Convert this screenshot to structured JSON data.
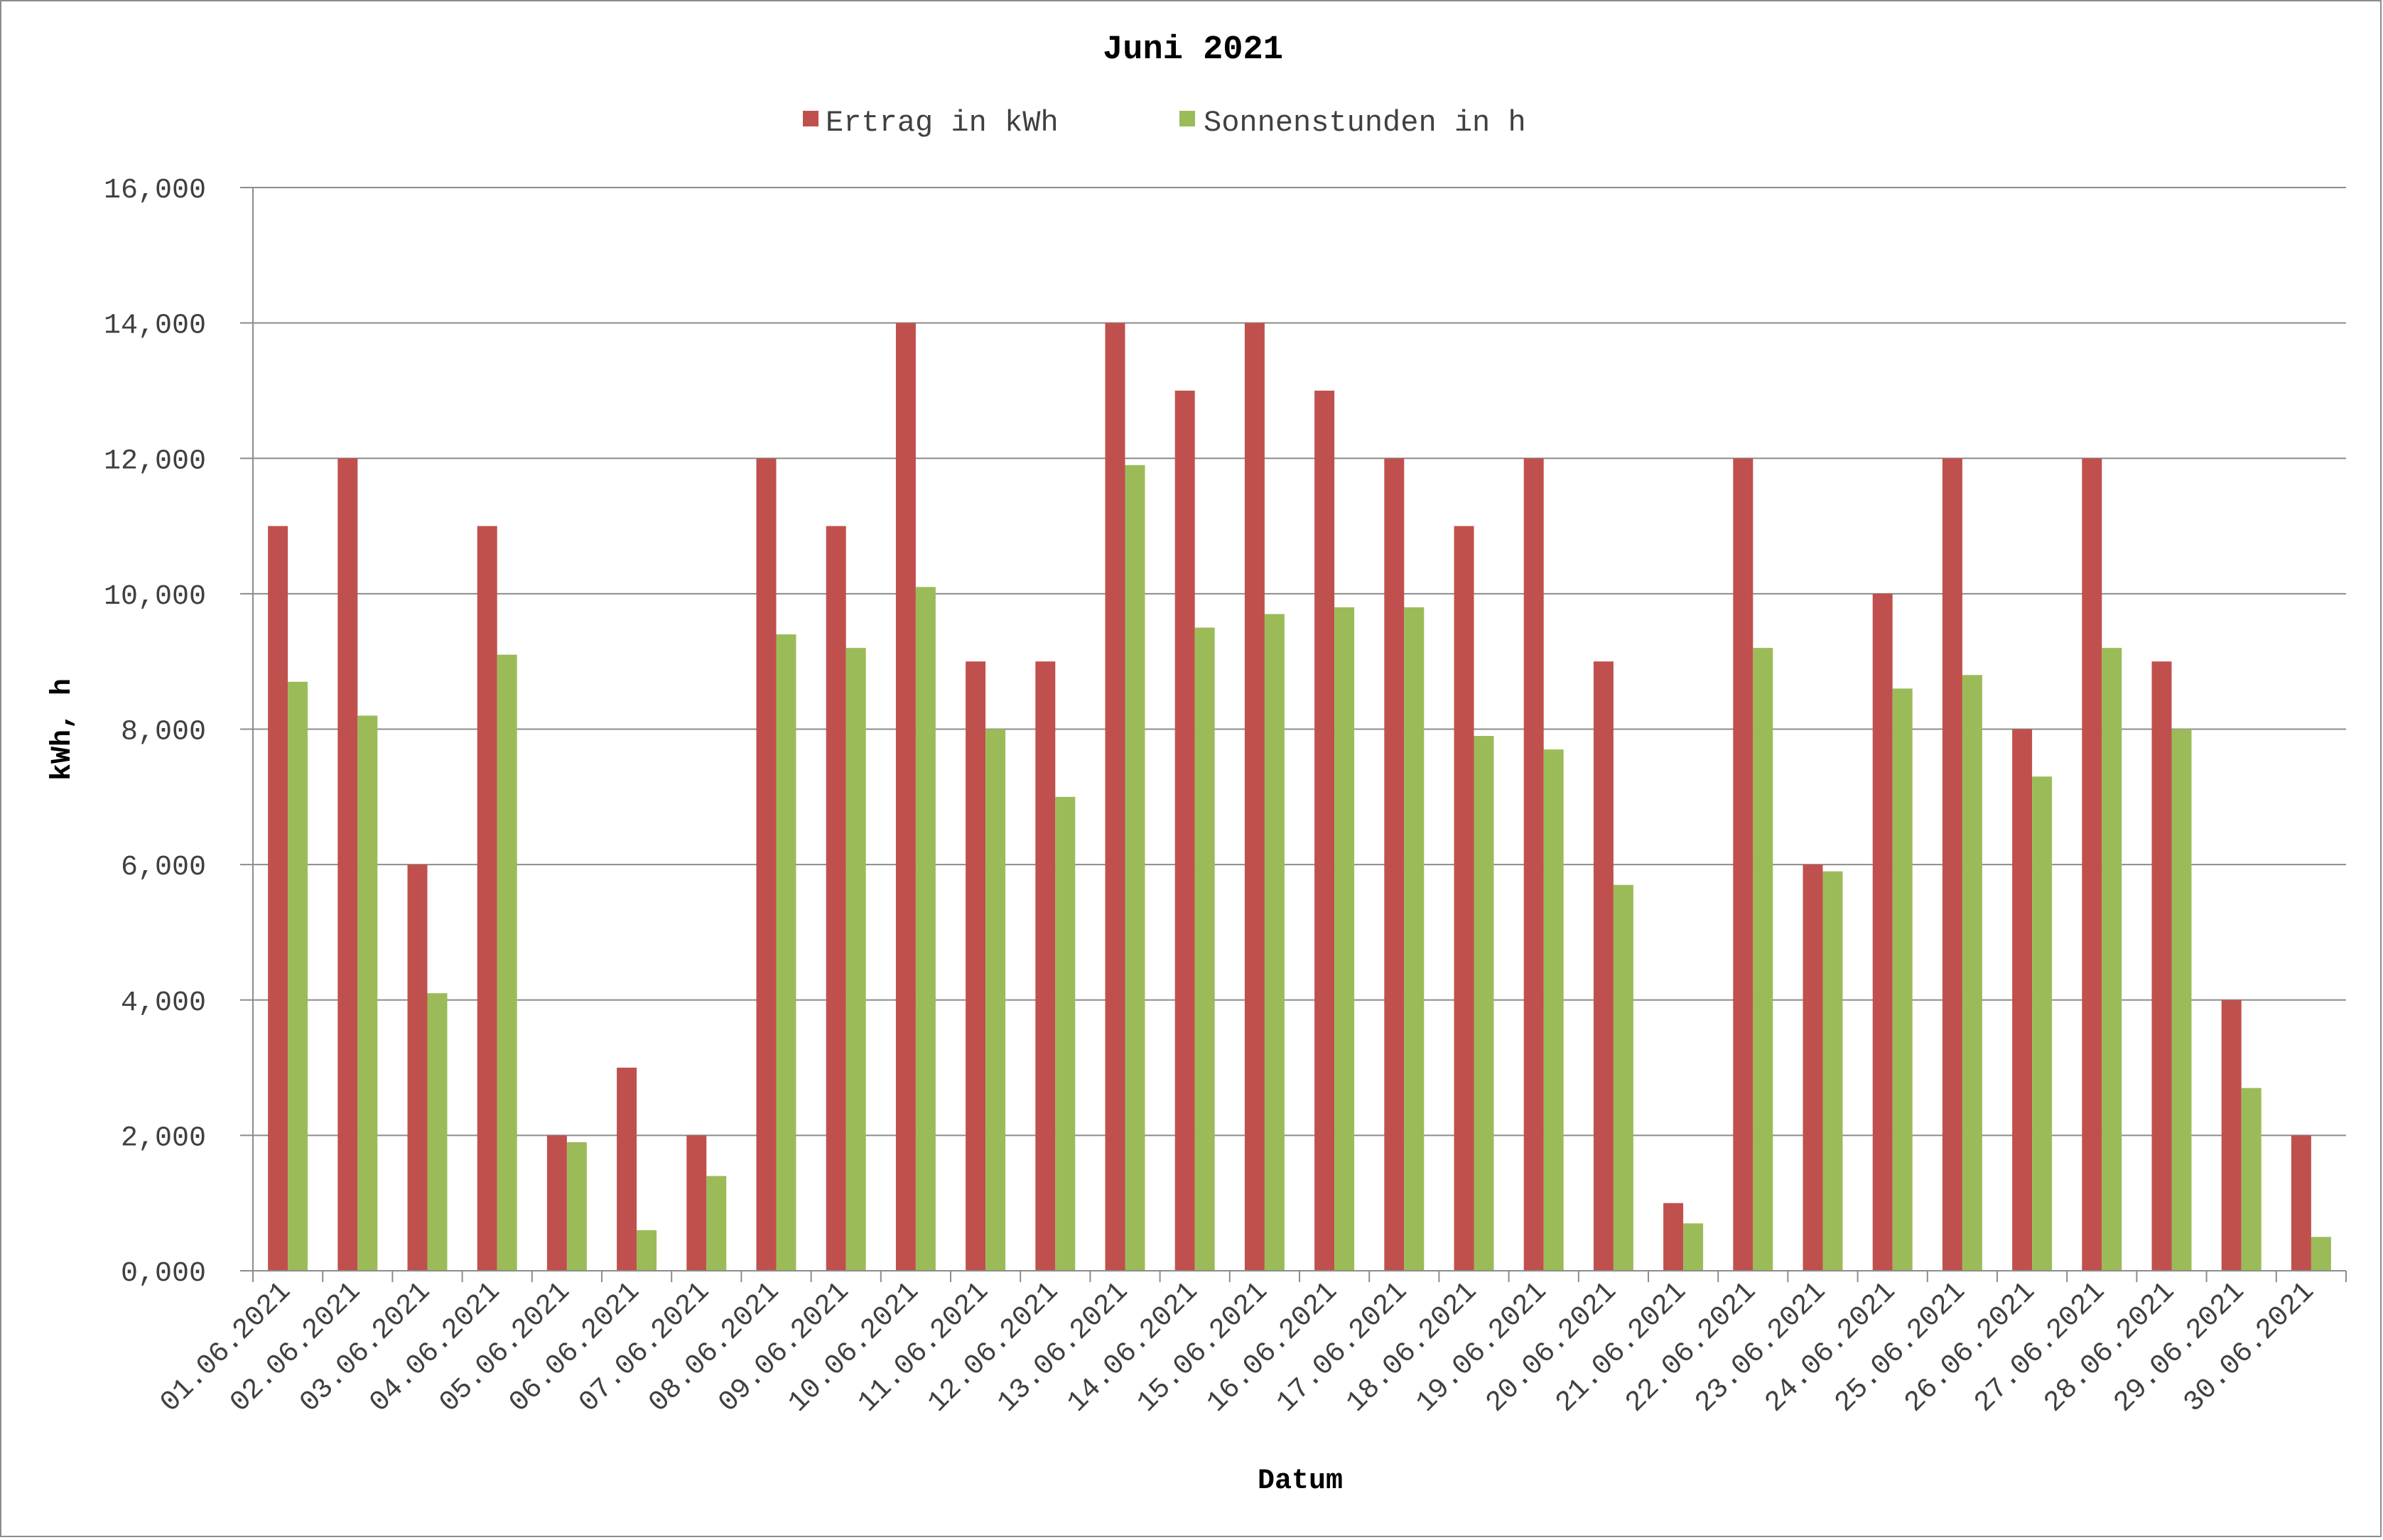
{
  "chart_data": {
    "type": "bar",
    "title": "Juni 2021",
    "xlabel": "Datum",
    "ylabel": "kWh, h",
    "ylim": [
      0,
      16
    ],
    "yticks": [
      "0,000",
      "2,000",
      "4,000",
      "6,000",
      "8,000",
      "10,000",
      "12,000",
      "14,000",
      "16,000"
    ],
    "grid": true,
    "legend_position": "top",
    "categories": [
      "01.06.2021",
      "02.06.2021",
      "03.06.2021",
      "04.06.2021",
      "05.06.2021",
      "06.06.2021",
      "07.06.2021",
      "08.06.2021",
      "09.06.2021",
      "10.06.2021",
      "11.06.2021",
      "12.06.2021",
      "13.06.2021",
      "14.06.2021",
      "15.06.2021",
      "16.06.2021",
      "17.06.2021",
      "18.06.2021",
      "19.06.2021",
      "20.06.2021",
      "21.06.2021",
      "22.06.2021",
      "23.06.2021",
      "24.06.2021",
      "25.06.2021",
      "26.06.2021",
      "27.06.2021",
      "28.06.2021",
      "29.06.2021",
      "30.06.2021"
    ],
    "series": [
      {
        "name": "Ertrag in kWh",
        "color": "#c0504d",
        "values": [
          11,
          12,
          6,
          11,
          2,
          3,
          2,
          12,
          11,
          14,
          9,
          9,
          14,
          13,
          14,
          13,
          12,
          11,
          12,
          9,
          1,
          12,
          6,
          10,
          12,
          8,
          12,
          9,
          4,
          2
        ]
      },
      {
        "name": "Sonnenstunden in h",
        "color": "#9bbb59",
        "values": [
          8.7,
          8.2,
          4.1,
          9.1,
          1.9,
          0.6,
          1.4,
          9.4,
          9.2,
          10.1,
          8.0,
          7.0,
          11.9,
          9.5,
          9.7,
          9.8,
          9.8,
          7.9,
          7.7,
          5.7,
          0.7,
          9.2,
          5.9,
          8.6,
          8.8,
          7.3,
          9.2,
          8.0,
          2.7,
          0.5
        ]
      }
    ]
  }
}
